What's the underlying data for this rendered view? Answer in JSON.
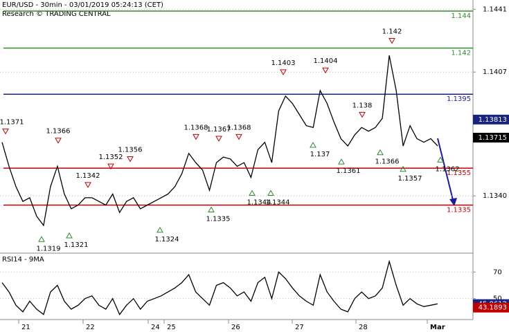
{
  "chart_data": [
    {
      "type": "line",
      "title": "EUR/USD - 30min - 03/01/2019 05:24:13 (CET)",
      "subtitle": "Research © TRADING CENTRAL",
      "color": "#000000",
      "values": [
        1.1369,
        1.1356,
        1.1345,
        1.1337,
        1.1339,
        1.1329,
        1.1324,
        1.1345,
        1.1356,
        1.1341,
        1.1333,
        1.1335,
        1.1339,
        1.1339,
        1.1337,
        1.1335,
        1.1341,
        1.1331,
        1.1337,
        1.1339,
        1.1333,
        1.1335,
        1.1337,
        1.1339,
        1.1341,
        1.1345,
        1.1352,
        1.1363,
        1.1358,
        1.1354,
        1.1343,
        1.1358,
        1.1361,
        1.136,
        1.1356,
        1.1358,
        1.135,
        1.1365,
        1.1369,
        1.1358,
        1.1386,
        1.1394,
        1.139,
        1.1384,
        1.1378,
        1.1377,
        1.1397,
        1.139,
        1.138,
        1.1371,
        1.1367,
        1.1373,
        1.1377,
        1.1375,
        1.1377,
        1.1382,
        1.1416,
        1.1397,
        1.1367,
        1.1378,
        1.1371,
        1.1369,
        1.1371,
        1.1367
      ],
      "x_labels": [
        "21",
        "22",
        "24",
        "25",
        "26",
        "27",
        "28",
        "Mar"
      ],
      "ylim": [
        1.1309,
        1.1446
      ],
      "yticks": [
        1.1441,
        1.1407,
        {
          "value": 1.134,
          "label": "1.1340"
        }
      ],
      "levels": [
        {
          "value": 1.144,
          "color": "#2e8b2e"
        },
        {
          "value": 1.142,
          "color": "#2e8b2e"
        },
        {
          "value": 1.1395,
          "color": "#1a1aa0"
        },
        {
          "value": 1.1355,
          "color": "#c00000"
        },
        {
          "value": 1.1335,
          "color": "#c00000"
        }
      ],
      "highs": [
        1.1371,
        1.1366,
        1.1342,
        1.1352,
        1.1356,
        1.1368,
        1.1367,
        1.1368,
        1.1403,
        1.1404,
        1.138,
        1.142
      ],
      "lows": [
        1.1319,
        1.1321,
        1.1324,
        1.1335,
        1.1344,
        1.1344,
        1.137,
        1.1361,
        1.1366,
        1.1357,
        1.1362
      ],
      "price_markers": [
        {
          "value": 1.13813,
          "color": "#1a237e"
        },
        {
          "value": 1.13715,
          "color": "#000000"
        }
      ]
    },
    {
      "type": "line",
      "title": "RSI14 - 9MA",
      "color": "#000000",
      "values": [
        62,
        55,
        45,
        40,
        48,
        42,
        38,
        55,
        60,
        48,
        42,
        45,
        50,
        52,
        45,
        42,
        50,
        38,
        45,
        50,
        42,
        48,
        50,
        52,
        55,
        58,
        62,
        68,
        55,
        50,
        45,
        60,
        62,
        58,
        52,
        55,
        48,
        62,
        66,
        50,
        70,
        65,
        58,
        52,
        48,
        45,
        68,
        55,
        48,
        42,
        40,
        50,
        55,
        50,
        52,
        58,
        78,
        60,
        45,
        50,
        46,
        44,
        45,
        46
      ],
      "ylim": [
        34.2,
        84.2
      ],
      "yticks": [
        50,
        70
      ],
      "markers": [
        {
          "value": 45.8612,
          "color": "#1a237e"
        },
        {
          "value": 43.1893,
          "color": "#c00000"
        }
      ]
    }
  ]
}
